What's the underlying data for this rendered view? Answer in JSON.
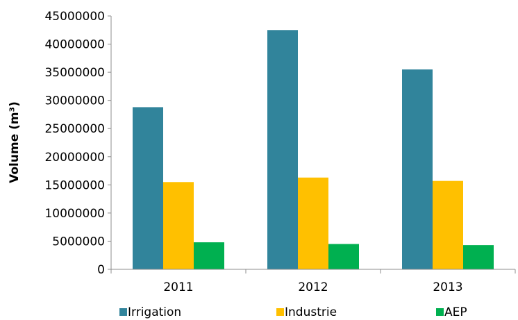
{
  "chart_data": {
    "type": "bar",
    "title": "",
    "xlabel": "",
    "ylabel": "Volume (m³)",
    "categories": [
      "2011",
      "2012",
      "2013"
    ],
    "series": [
      {
        "name": "Irrigation",
        "color": "#31849b",
        "values": [
          28800000,
          42500000,
          35500000
        ]
      },
      {
        "name": "Industrie",
        "color": "#ffc000",
        "values": [
          15500000,
          16300000,
          15700000
        ]
      },
      {
        "name": "AEP",
        "color": "#00b050",
        "values": [
          4800000,
          4500000,
          4300000
        ]
      }
    ],
    "ylim": [
      0,
      45000000
    ],
    "yticks": [
      "0",
      "5000000",
      "10000000",
      "15000000",
      "20000000",
      "25000000",
      "30000000",
      "35000000",
      "40000000",
      "45000000"
    ],
    "grid": false,
    "legend_position": "bottom"
  }
}
